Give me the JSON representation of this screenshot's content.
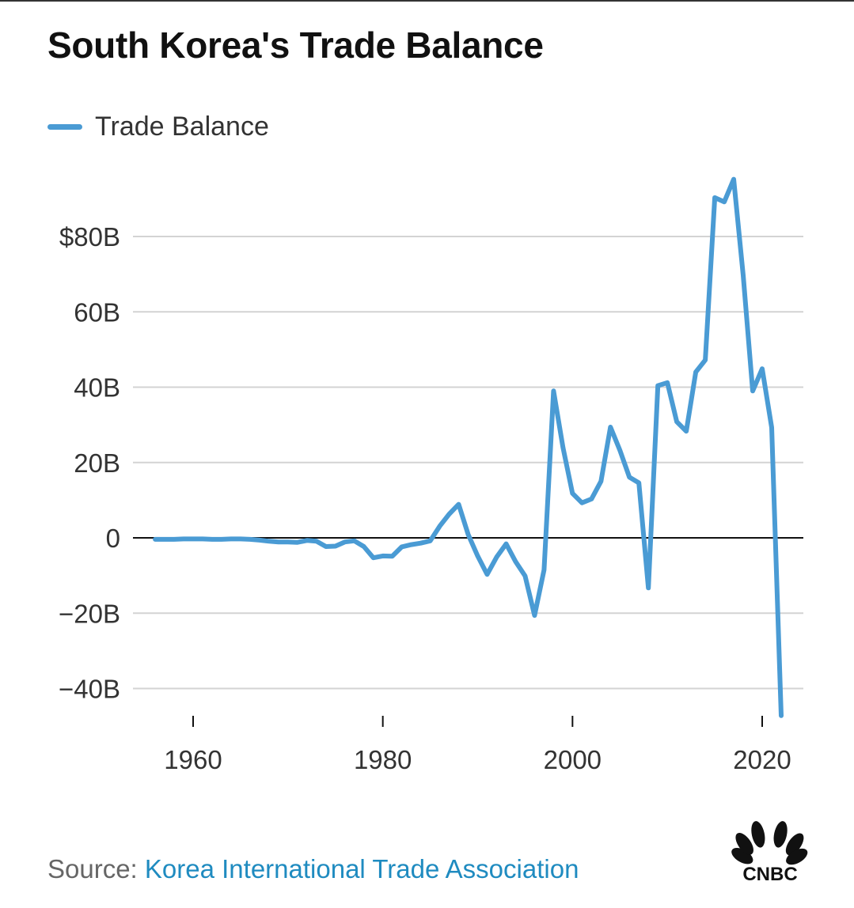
{
  "title": "South Korea's Trade Balance",
  "legend": {
    "label": "Trade Balance"
  },
  "source": {
    "prefix": "Source:",
    "link_text": "Korea International Trade Association"
  },
  "logo": {
    "text": "CNBC"
  },
  "colors": {
    "line": "#4a9bd4",
    "grid": "#d3d3d3",
    "zero_line": "#111111",
    "link": "#1f8bc0"
  },
  "chart_data": {
    "type": "line",
    "title": "South Korea's Trade Balance",
    "xlabel": "",
    "ylabel": "",
    "xlim": [
      1953,
      2025
    ],
    "ylim": [
      -48,
      97
    ],
    "x_ticks": [
      1960,
      1980,
      2000,
      2020
    ],
    "y_ticks": [
      {
        "value": 80,
        "label": "$80B"
      },
      {
        "value": 60,
        "label": "60B"
      },
      {
        "value": 40,
        "label": "40B"
      },
      {
        "value": 20,
        "label": "20B"
      },
      {
        "value": 0,
        "label": "0"
      },
      {
        "value": -20,
        "label": "−20B"
      },
      {
        "value": -40,
        "label": "−40B"
      }
    ],
    "series": [
      {
        "name": "Trade Balance",
        "x": [
          1956,
          1957,
          1958,
          1959,
          1960,
          1961,
          1962,
          1963,
          1964,
          1965,
          1966,
          1967,
          1968,
          1969,
          1970,
          1971,
          1972,
          1973,
          1974,
          1975,
          1976,
          1977,
          1978,
          1979,
          1980,
          1981,
          1982,
          1983,
          1984,
          1985,
          1986,
          1987,
          1988,
          1989,
          1990,
          1991,
          1992,
          1993,
          1994,
          1995,
          1996,
          1997,
          1998,
          1999,
          2000,
          2001,
          2002,
          2003,
          2004,
          2005,
          2006,
          2007,
          2008,
          2009,
          2010,
          2011,
          2012,
          2013,
          2014,
          2015,
          2016,
          2017,
          2018,
          2019,
          2020,
          2021,
          2022
        ],
        "values": [
          -0.4,
          -0.4,
          -0.4,
          -0.3,
          -0.3,
          -0.3,
          -0.4,
          -0.4,
          -0.3,
          -0.3,
          -0.4,
          -0.6,
          -0.9,
          -1.1,
          -1.1,
          -1.2,
          -0.7,
          -0.9,
          -2.3,
          -2.2,
          -1.1,
          -0.8,
          -2.3,
          -5.3,
          -4.8,
          -4.9,
          -2.4,
          -1.8,
          -1.4,
          -0.8,
          3.1,
          6.3,
          8.9,
          0.9,
          -4.8,
          -9.7,
          -5.1,
          -1.6,
          -6.3,
          -10.1,
          -20.6,
          -8.5,
          39.0,
          23.9,
          11.8,
          9.3,
          10.3,
          15.0,
          29.4,
          23.2,
          16.1,
          14.6,
          -13.3,
          40.4,
          41.2,
          30.8,
          28.3,
          44.0,
          47.2,
          90.3,
          89.2,
          95.2,
          69.7,
          39.0,
          44.9,
          29.3,
          -47.2
        ]
      }
    ]
  }
}
